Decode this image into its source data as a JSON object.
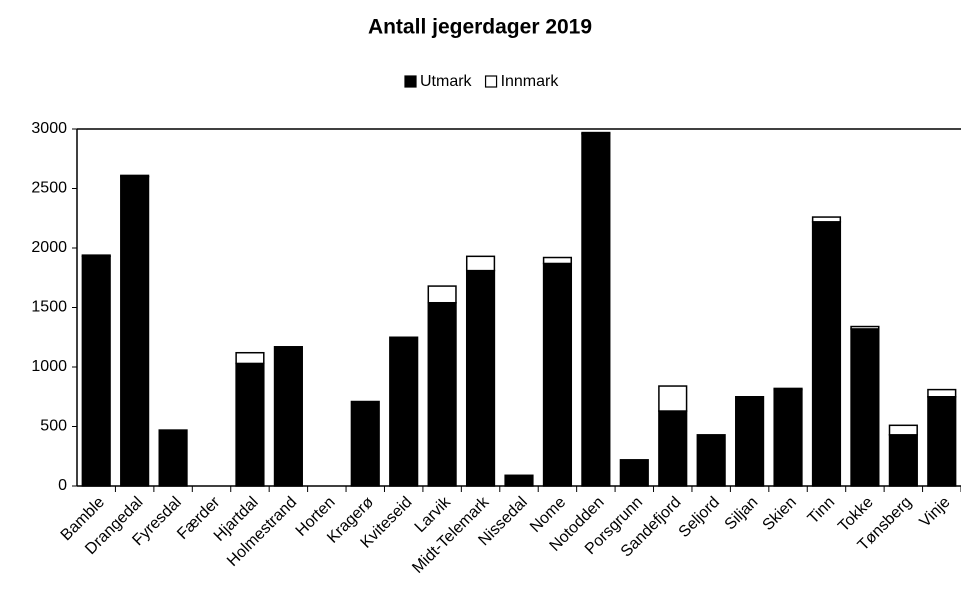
{
  "chart_data": {
    "type": "bar",
    "stacked": true,
    "title": "Antall jegerdager 2019",
    "categories": [
      "Bamble",
      "Drangedal",
      "Fyresdal",
      "Færder",
      "Hjartdal",
      "Holmestrand",
      "Horten",
      "Kragerø",
      "Kviteseid",
      "Larvik",
      "Midt-Telemark",
      "Nissedal",
      "Nome",
      "Notodden",
      "Porsgrunn",
      "Sandefjord",
      "Seljord",
      "Siljan",
      "Skien",
      "Tinn",
      "Tokke",
      "Tønsberg",
      "Vinje"
    ],
    "series": [
      {
        "name": "Utmark",
        "color": "#000000",
        "values": [
          1930,
          2600,
          470,
          0,
          1030,
          1170,
          0,
          710,
          1250,
          1540,
          1810,
          90,
          1870,
          2960,
          220,
          630,
          430,
          750,
          810,
          2220,
          1320,
          430,
          750
        ]
      },
      {
        "name": "Innmark",
        "color": "#ffffff",
        "values": [
          10,
          10,
          0,
          0,
          90,
          0,
          0,
          0,
          0,
          140,
          120,
          0,
          50,
          10,
          0,
          210,
          0,
          0,
          10,
          40,
          20,
          80,
          60
        ]
      }
    ],
    "ylim": [
      0,
      3000
    ],
    "yticks": [
      0,
      500,
      1000,
      1500,
      2000,
      2500,
      3000
    ],
    "legend": "top",
    "grid": false
  }
}
